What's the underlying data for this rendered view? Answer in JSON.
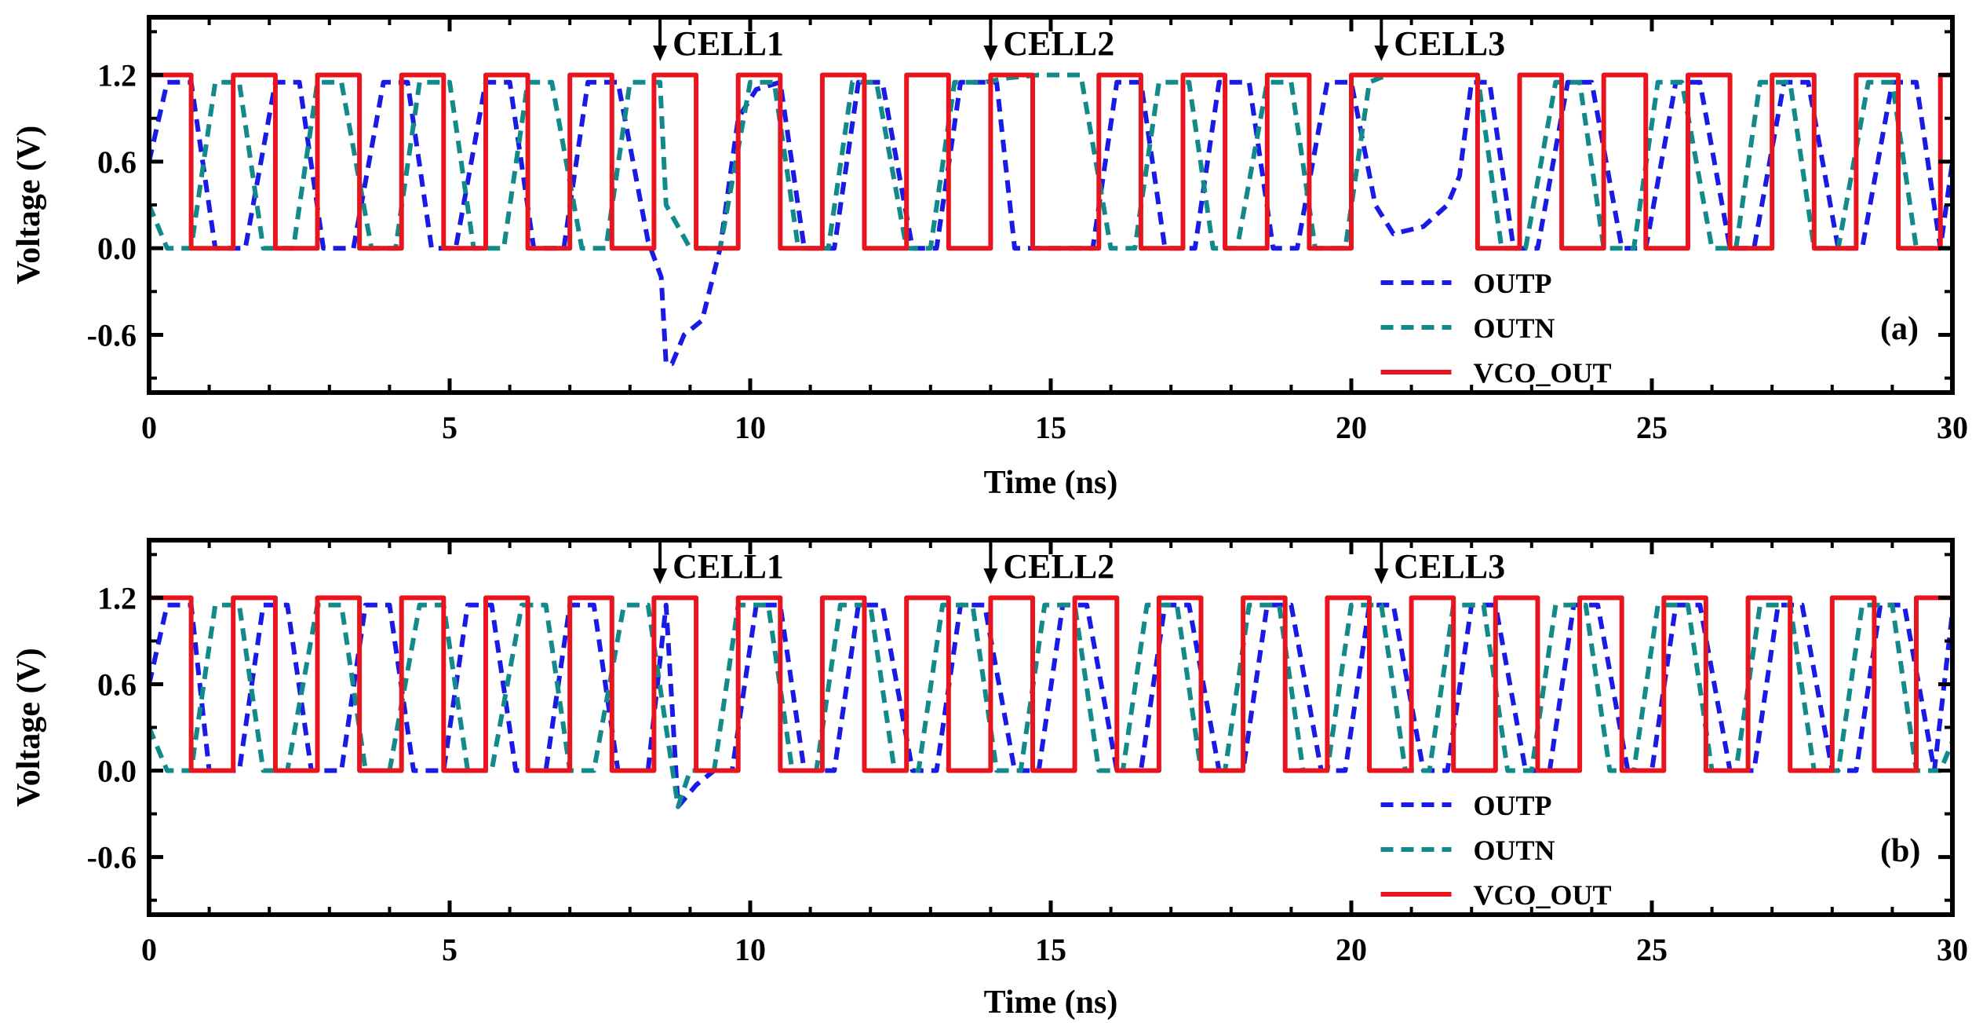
{
  "chart_data": [
    {
      "type": "line",
      "panel_label": "(a)",
      "xlabel": "Time (ns)",
      "ylabel": "Voltage (V)",
      "xlim": [
        0,
        30
      ],
      "ylim": [
        -1.0,
        1.6
      ],
      "xticks": [
        0,
        5,
        10,
        15,
        20,
        25,
        30
      ],
      "xtick_labels": [
        "0",
        "5",
        "10",
        "15",
        "20",
        "25",
        "30"
      ],
      "yticks": [
        -0.6,
        0.0,
        0.6,
        1.2
      ],
      "ytick_labels": [
        "-0.6",
        "0.0",
        "0.6",
        "1.2"
      ],
      "legend": [
        "OUTP",
        "OUTN",
        "VCO_OUT"
      ],
      "legend_position": "bottom-right",
      "annotations": [
        {
          "label": "CELL1",
          "x": 8.5
        },
        {
          "label": "CELL2",
          "x": 14.0
        },
        {
          "label": "CELL3",
          "x": 20.5
        }
      ],
      "series": [
        {
          "name": "OUTP",
          "color": "#1a1ae6",
          "style": "dashed",
          "x": [
            0,
            0.3,
            0.7,
            1.1,
            1.6,
            2.1,
            2.5,
            2.9,
            3.4,
            3.9,
            4.3,
            4.7,
            5.1,
            5.6,
            6.0,
            6.4,
            6.9,
            7.3,
            7.8,
            8.3,
            8.52,
            8.6,
            8.7,
            8.9,
            9.2,
            9.5,
            9.8,
            10.1,
            10.5,
            10.9,
            11.4,
            11.8,
            12.2,
            12.7,
            13.1,
            13.5,
            13.9,
            14.1,
            14.4,
            14.7,
            15.2,
            15.7,
            16.1,
            16.5,
            16.9,
            17.4,
            17.8,
            18.3,
            18.7,
            19.1,
            19.6,
            20.0,
            20.4,
            20.7,
            21.2,
            21.6,
            21.8,
            22.0,
            22.3,
            22.7,
            23.1,
            23.6,
            24.0,
            24.5,
            24.9,
            25.4,
            25.8,
            26.3,
            26.7,
            27.2,
            27.6,
            28.1,
            28.5,
            29.0,
            29.4,
            29.8,
            30.0
          ],
          "y": [
            0.6,
            1.15,
            1.15,
            0.0,
            0.0,
            1.15,
            1.15,
            0.0,
            0.0,
            1.15,
            1.15,
            0.0,
            0.0,
            1.15,
            1.15,
            0.0,
            0.0,
            1.15,
            1.15,
            0.05,
            -0.2,
            -0.8,
            -0.8,
            -0.6,
            -0.5,
            0.0,
            0.9,
            1.1,
            1.15,
            0.0,
            0.0,
            1.15,
            1.15,
            0.0,
            0.0,
            1.15,
            1.15,
            1.15,
            0.0,
            0.0,
            0.0,
            0.0,
            1.15,
            1.15,
            0.0,
            0.0,
            1.15,
            1.15,
            0.0,
            0.0,
            1.15,
            1.15,
            0.3,
            0.1,
            0.15,
            0.3,
            0.5,
            1.15,
            1.15,
            0.0,
            0.0,
            1.15,
            1.15,
            0.0,
            0.0,
            1.15,
            1.15,
            0.0,
            0.0,
            1.15,
            1.15,
            0.0,
            0.0,
            1.15,
            1.15,
            0.0,
            0.6
          ]
        },
        {
          "name": "OUTN",
          "color": "#138a8a",
          "style": "dashed",
          "x": [
            0,
            0.3,
            0.7,
            1.1,
            1.5,
            1.9,
            2.4,
            2.8,
            3.2,
            3.7,
            4.1,
            4.5,
            5.0,
            5.4,
            5.9,
            6.3,
            6.7,
            7.2,
            7.6,
            8.0,
            8.5,
            8.6,
            9.0,
            9.5,
            10.0,
            10.4,
            10.8,
            11.3,
            11.7,
            12.1,
            12.6,
            13.0,
            13.4,
            13.9,
            14.3,
            14.8,
            15.5,
            16.0,
            16.4,
            16.8,
            17.3,
            17.7,
            18.1,
            18.6,
            19.0,
            19.4,
            19.9,
            20.3,
            20.6,
            21.0,
            21.6,
            22.1,
            22.5,
            22.9,
            23.4,
            23.8,
            24.2,
            24.7,
            25.1,
            25.5,
            26.0,
            26.4,
            26.8,
            27.3,
            27.7,
            28.1,
            28.6,
            29.0,
            29.4,
            29.9,
            30.0
          ],
          "y": [
            0.3,
            0.0,
            0.0,
            1.15,
            1.15,
            0.0,
            0.0,
            1.15,
            1.15,
            0.0,
            0.0,
            1.15,
            1.15,
            0.0,
            0.0,
            1.15,
            1.15,
            0.0,
            0.0,
            1.15,
            1.15,
            0.3,
            0.0,
            0.0,
            1.15,
            1.15,
            0.0,
            0.0,
            1.15,
            1.15,
            0.0,
            0.0,
            1.15,
            1.15,
            1.18,
            1.2,
            1.2,
            0.0,
            0.0,
            1.15,
            1.15,
            0.0,
            0.0,
            1.15,
            1.15,
            0.0,
            0.0,
            1.15,
            1.2,
            1.2,
            1.2,
            1.2,
            0.0,
            0.0,
            1.15,
            1.15,
            0.0,
            0.0,
            1.15,
            1.15,
            0.0,
            0.0,
            1.15,
            1.15,
            0.0,
            0.0,
            1.15,
            1.15,
            0.0,
            0.0,
            0.0
          ]
        },
        {
          "name": "VCO_OUT",
          "color": "#e8141e",
          "style": "solid",
          "x": [
            0,
            0.7,
            0.7,
            1.4,
            1.4,
            2.1,
            2.1,
            2.8,
            2.8,
            3.5,
            3.5,
            4.2,
            4.2,
            4.9,
            4.9,
            5.6,
            5.6,
            6.3,
            6.3,
            7.0,
            7.0,
            7.7,
            7.7,
            8.4,
            8.4,
            9.1,
            9.1,
            9.8,
            9.8,
            10.5,
            10.5,
            11.2,
            11.2,
            11.9,
            11.9,
            12.6,
            12.6,
            13.3,
            13.3,
            14.0,
            14.0,
            14.7,
            14.7,
            15.8,
            15.8,
            16.5,
            16.5,
            17.2,
            17.2,
            17.9,
            17.9,
            18.6,
            18.6,
            19.3,
            19.3,
            20.0,
            20.0,
            20.7,
            20.7,
            21.4,
            21.4,
            22.1,
            22.1,
            22.8,
            22.8,
            23.5,
            23.5,
            24.2,
            24.2,
            24.9,
            24.9,
            25.6,
            25.6,
            26.3,
            26.3,
            27.0,
            27.0,
            27.7,
            27.7,
            28.4,
            28.4,
            29.1,
            29.1,
            29.8,
            29.8,
            30.0
          ],
          "y": [
            1.2,
            1.2,
            0.0,
            0.0,
            1.2,
            1.2,
            0.0,
            0.0,
            1.2,
            1.2,
            0.0,
            0.0,
            1.2,
            1.2,
            0.0,
            0.0,
            1.2,
            1.2,
            0.0,
            0.0,
            1.2,
            1.2,
            0.0,
            0.0,
            1.2,
            1.2,
            0.0,
            0.0,
            1.2,
            1.2,
            0.0,
            0.0,
            1.2,
            1.2,
            0.0,
            0.0,
            1.2,
            1.2,
            0.0,
            0.0,
            1.2,
            1.2,
            0.0,
            0.0,
            1.2,
            1.2,
            0.0,
            0.0,
            1.2,
            1.2,
            0.0,
            0.0,
            1.2,
            1.2,
            0.0,
            0.0,
            1.2,
            1.2,
            1.2,
            1.2,
            1.2,
            1.2,
            0.0,
            0.0,
            1.2,
            1.2,
            0.0,
            0.0,
            1.2,
            1.2,
            0.0,
            0.0,
            1.2,
            1.2,
            0.0,
            0.0,
            1.2,
            1.2,
            0.0,
            0.0,
            1.2,
            1.2,
            0.0,
            0.0,
            1.2,
            1.2
          ]
        }
      ]
    },
    {
      "type": "line",
      "panel_label": "(b)",
      "xlabel": "Time (ns)",
      "ylabel": "Voltage (V)",
      "xlim": [
        0,
        30
      ],
      "ylim": [
        -1.0,
        1.6
      ],
      "xticks": [
        0,
        5,
        10,
        15,
        20,
        25,
        30
      ],
      "xtick_labels": [
        "0",
        "5",
        "10",
        "15",
        "20",
        "25",
        "30"
      ],
      "yticks": [
        -0.6,
        0.0,
        0.6,
        1.2
      ],
      "ytick_labels": [
        "-0.6",
        "0.0",
        "0.6",
        "1.2"
      ],
      "legend": [
        "OUTP",
        "OUTN",
        "VCO_OUT"
      ],
      "legend_position": "bottom-right",
      "annotations": [
        {
          "label": "CELL1",
          "x": 8.5
        },
        {
          "label": "CELL2",
          "x": 14.0
        },
        {
          "label": "CELL3",
          "x": 20.5
        }
      ],
      "series": [
        {
          "name": "OUTP",
          "color": "#1a1ae6",
          "style": "dashed",
          "x": [
            0,
            0.3,
            0.7,
            1.0,
            1.5,
            1.9,
            2.3,
            2.7,
            3.2,
            3.6,
            4.0,
            4.4,
            4.9,
            5.3,
            5.7,
            6.1,
            6.6,
            7.0,
            7.4,
            7.8,
            8.3,
            8.6,
            8.8,
            9.1,
            9.4,
            9.7,
            10.1,
            10.5,
            10.9,
            11.4,
            11.8,
            12.2,
            12.7,
            13.1,
            13.5,
            13.9,
            14.4,
            14.8,
            15.2,
            15.6,
            16.1,
            16.5,
            16.9,
            17.3,
            17.8,
            18.2,
            18.6,
            19.0,
            19.5,
            19.9,
            20.3,
            20.7,
            21.2,
            21.6,
            22.0,
            22.4,
            22.9,
            23.3,
            23.7,
            24.1,
            24.6,
            25.0,
            25.4,
            25.8,
            26.3,
            26.7,
            27.1,
            27.5,
            28.0,
            28.4,
            28.8,
            29.2,
            29.7,
            30.0
          ],
          "y": [
            0.6,
            1.15,
            1.15,
            0.0,
            0.0,
            1.15,
            1.15,
            0.0,
            0.0,
            1.15,
            1.15,
            0.0,
            0.0,
            1.15,
            1.15,
            0.0,
            0.0,
            1.15,
            1.15,
            0.0,
            0.0,
            1.15,
            -0.25,
            -0.1,
            0.0,
            0.0,
            1.15,
            1.15,
            0.0,
            0.0,
            1.15,
            1.15,
            0.0,
            0.0,
            1.15,
            1.15,
            0.0,
            0.0,
            1.15,
            1.15,
            0.0,
            0.0,
            1.15,
            1.15,
            0.0,
            0.0,
            1.15,
            1.15,
            0.0,
            0.0,
            1.15,
            1.15,
            0.0,
            0.0,
            1.15,
            1.15,
            0.0,
            0.0,
            1.15,
            1.15,
            0.0,
            0.0,
            1.15,
            1.15,
            0.0,
            0.0,
            1.15,
            1.15,
            0.0,
            0.0,
            1.15,
            1.15,
            0.0,
            1.1
          ]
        },
        {
          "name": "OUTN",
          "color": "#138a8a",
          "style": "dashed",
          "x": [
            0,
            0.3,
            0.7,
            1.1,
            1.5,
            1.9,
            2.3,
            2.8,
            3.2,
            3.6,
            4.0,
            4.5,
            4.9,
            5.3,
            5.7,
            6.2,
            6.6,
            7.0,
            7.4,
            7.9,
            8.3,
            8.6,
            8.8,
            9.0,
            9.4,
            9.8,
            10.3,
            10.7,
            11.1,
            11.5,
            12.0,
            12.4,
            12.8,
            13.2,
            13.7,
            14.1,
            14.5,
            14.9,
            15.4,
            15.8,
            16.2,
            16.6,
            17.1,
            17.5,
            17.9,
            18.3,
            18.8,
            19.2,
            19.6,
            20.0,
            20.5,
            20.9,
            21.3,
            21.7,
            22.2,
            22.6,
            23.0,
            23.4,
            23.9,
            24.3,
            24.7,
            25.1,
            25.6,
            26.0,
            26.4,
            26.8,
            27.3,
            27.7,
            28.1,
            28.5,
            29.0,
            29.4,
            29.8,
            30.0
          ],
          "y": [
            0.3,
            0.0,
            0.0,
            1.15,
            1.15,
            0.0,
            0.0,
            1.15,
            1.15,
            0.0,
            0.0,
            1.15,
            1.15,
            0.0,
            0.0,
            1.15,
            1.15,
            0.0,
            0.0,
            1.15,
            1.15,
            0.3,
            -0.25,
            0.0,
            0.0,
            1.15,
            1.15,
            0.0,
            0.0,
            1.15,
            1.15,
            0.0,
            0.0,
            1.15,
            1.15,
            0.0,
            0.0,
            1.15,
            1.15,
            0.0,
            0.0,
            1.15,
            1.15,
            0.0,
            0.0,
            1.15,
            1.15,
            0.0,
            0.0,
            1.15,
            1.15,
            0.0,
            0.0,
            1.15,
            1.15,
            0.0,
            0.0,
            1.15,
            1.15,
            0.0,
            0.0,
            1.15,
            1.15,
            0.0,
            0.0,
            1.15,
            1.15,
            0.0,
            0.0,
            1.15,
            1.15,
            0.0,
            0.0,
            0.2
          ]
        },
        {
          "name": "VCO_OUT",
          "color": "#e8141e",
          "style": "solid",
          "x": [
            0,
            0.7,
            0.7,
            1.4,
            1.4,
            2.1,
            2.1,
            2.8,
            2.8,
            3.5,
            3.5,
            4.2,
            4.2,
            4.9,
            4.9,
            5.6,
            5.6,
            6.3,
            6.3,
            7.0,
            7.0,
            7.7,
            7.7,
            8.4,
            8.4,
            9.1,
            9.1,
            9.8,
            9.8,
            10.5,
            10.5,
            11.2,
            11.2,
            11.9,
            11.9,
            12.6,
            12.6,
            13.3,
            13.3,
            14.0,
            14.0,
            14.7,
            14.7,
            15.4,
            15.4,
            16.1,
            16.1,
            16.8,
            16.8,
            17.5,
            17.5,
            18.2,
            18.2,
            18.9,
            18.9,
            19.6,
            19.6,
            20.3,
            20.3,
            21.0,
            21.0,
            21.7,
            21.7,
            22.4,
            22.4,
            23.1,
            23.1,
            23.8,
            23.8,
            24.5,
            24.5,
            25.2,
            25.2,
            25.9,
            25.9,
            26.6,
            26.6,
            27.3,
            27.3,
            28.0,
            28.0,
            28.7,
            28.7,
            29.4,
            29.4,
            30.0
          ],
          "y": [
            1.2,
            1.2,
            0.0,
            0.0,
            1.2,
            1.2,
            0.0,
            0.0,
            1.2,
            1.2,
            0.0,
            0.0,
            1.2,
            1.2,
            0.0,
            0.0,
            1.2,
            1.2,
            0.0,
            0.0,
            1.2,
            1.2,
            0.0,
            0.0,
            1.2,
            1.2,
            0.0,
            0.0,
            1.2,
            1.2,
            0.0,
            0.0,
            1.2,
            1.2,
            0.0,
            0.0,
            1.2,
            1.2,
            0.0,
            0.0,
            1.2,
            1.2,
            0.0,
            0.0,
            1.2,
            1.2,
            0.0,
            0.0,
            1.2,
            1.2,
            0.0,
            0.0,
            1.2,
            1.2,
            0.0,
            0.0,
            1.2,
            1.2,
            0.0,
            0.0,
            1.2,
            1.2,
            0.0,
            0.0,
            1.2,
            1.2,
            0.0,
            0.0,
            1.2,
            1.2,
            0.0,
            0.0,
            1.2,
            1.2,
            0.0,
            0.0,
            1.2,
            1.2,
            0.0,
            0.0,
            1.2,
            1.2,
            0.0,
            0.0,
            1.2,
            1.2
          ]
        }
      ]
    }
  ]
}
